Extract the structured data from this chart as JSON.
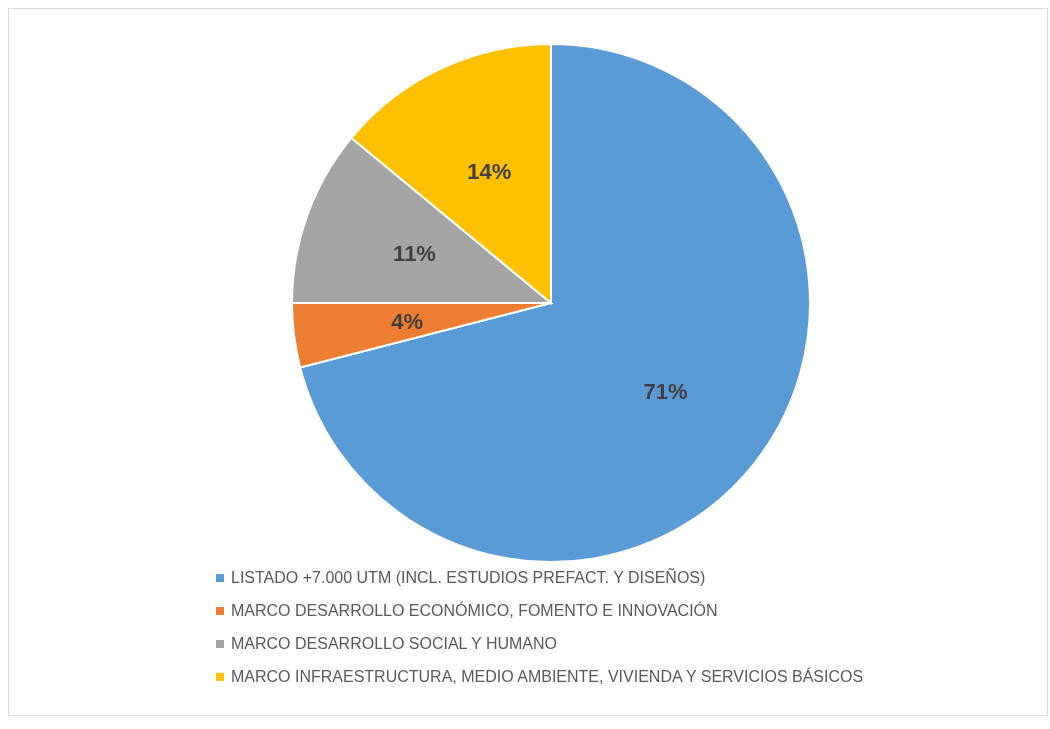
{
  "chart_data": {
    "type": "pie",
    "categories": [
      "LISTADO +7.000 UTM (INCL. ESTUDIOS PREFACT. Y DISEÑOS)",
      "MARCO DESARROLLO ECONÓMICO, FOMENTO E INNOVACIÓN",
      "MARCO DESARROLLO SOCIAL Y HUMANO",
      "MARCO INFRAESTRUCTURA, MEDIO AMBIENTE, VIVIENDA Y SERVICIOS BÁSICOS"
    ],
    "values": [
      71,
      4,
      11,
      14
    ],
    "colors": [
      "#5b9bd5",
      "#ed7d31",
      "#a5a5a5",
      "#ffc000"
    ],
    "value_labels": [
      "71%",
      "4%",
      "11%",
      "14%"
    ],
    "legend": "bottom"
  }
}
